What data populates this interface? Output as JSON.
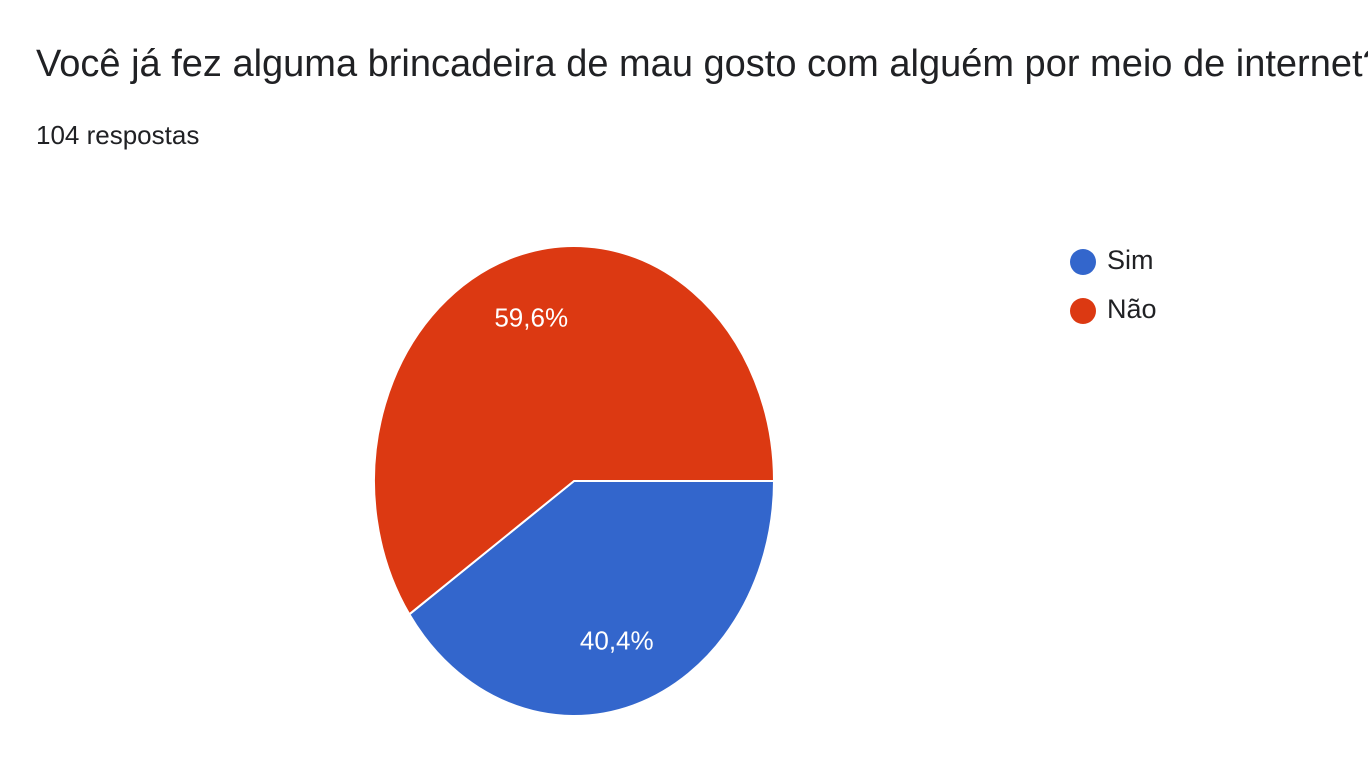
{
  "question": {
    "title": "Você já fez alguma brincadeira de mau gosto com alguém por meio de internet?",
    "response_count": "104 respostas"
  },
  "chart_data": {
    "type": "pie",
    "legend_position": "top-right",
    "slices": [
      {
        "name": "Sim",
        "value": 40.4,
        "label": "40,4%",
        "color": "#3366cc"
      },
      {
        "name": "Não",
        "value": 59.6,
        "label": "59,6%",
        "color": "#dc3912"
      }
    ]
  }
}
